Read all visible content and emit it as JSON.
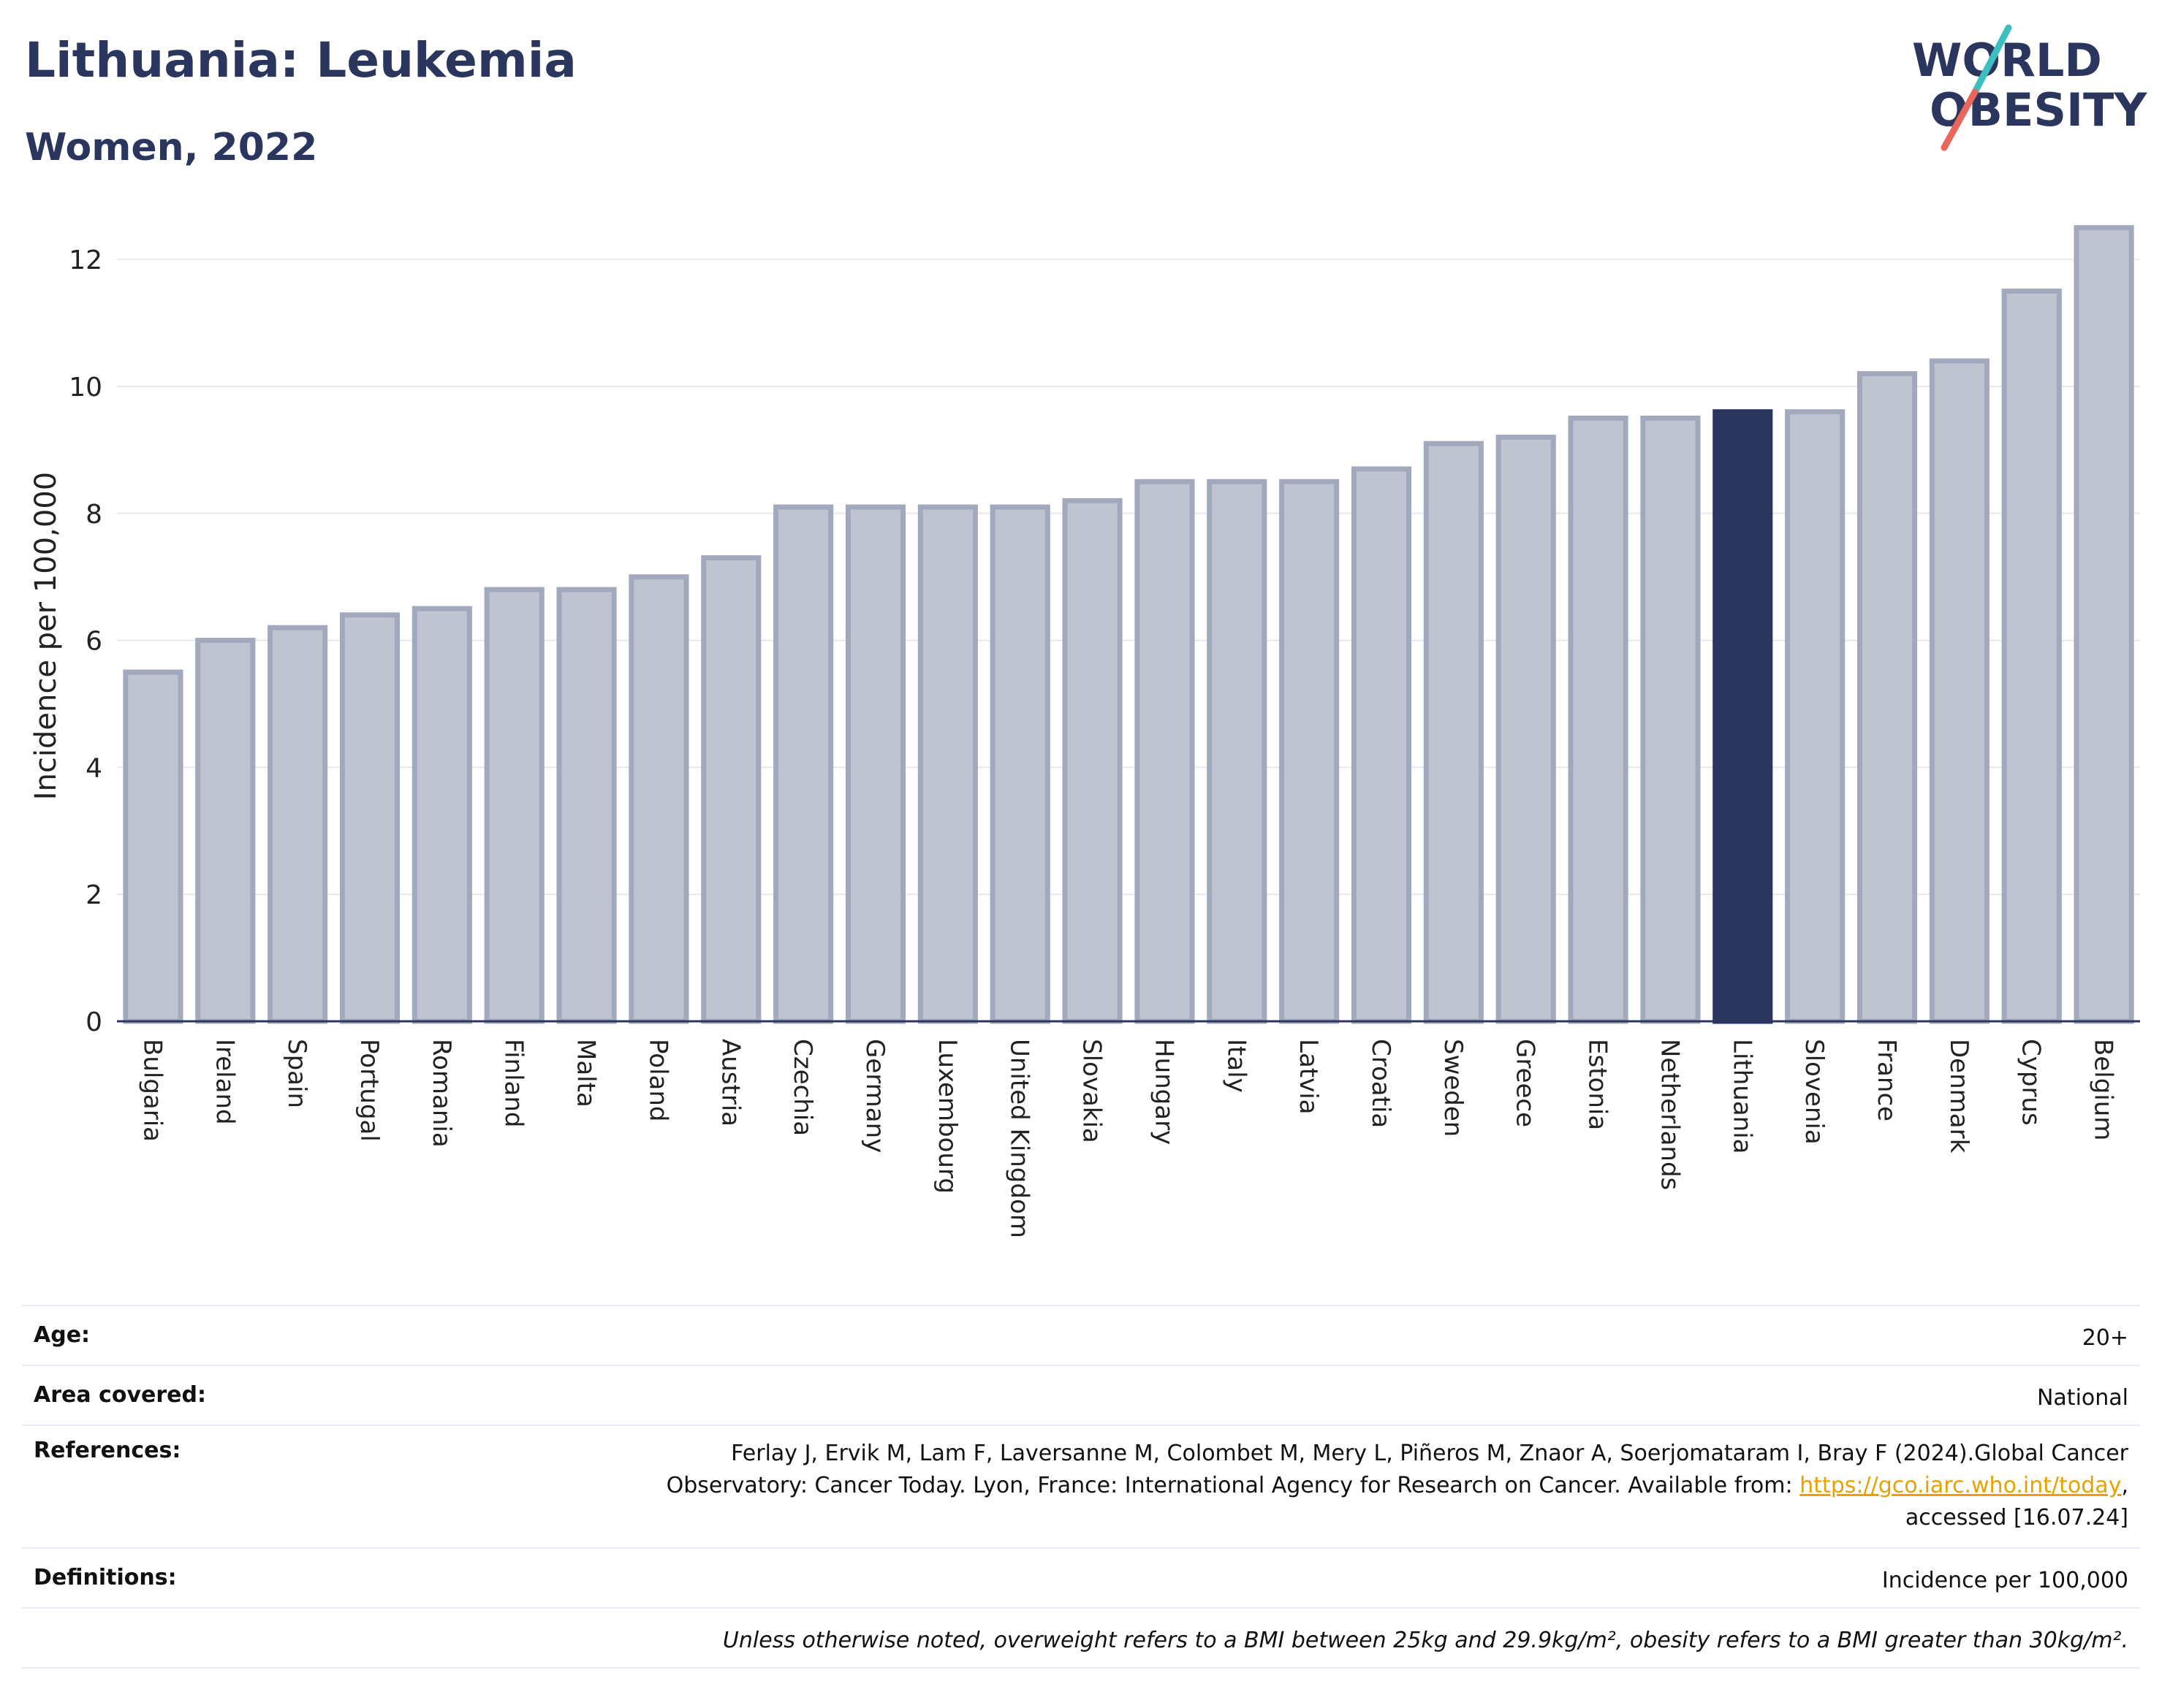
{
  "header": {
    "title": "Lithuania: Leukemia",
    "subtitle": "Women, 2022"
  },
  "logo": {
    "line1": "WORLD",
    "line2": "OBESITY"
  },
  "colors": {
    "bar": "#c0c4d1",
    "bar_border": "#a3a9bd",
    "highlight": "#2b365f",
    "grid": "#e6e8ee",
    "axis": "#2b365f",
    "logo_text": "#2b365f",
    "logo_teal": "#3bbfbf",
    "logo_coral": "#e8675a"
  },
  "chart_data": {
    "type": "bar",
    "ylabel": "Incidence per 100,000",
    "ylim": [
      0,
      12.6
    ],
    "yticks": [
      0,
      2,
      4,
      6,
      8,
      10,
      12
    ],
    "grid": true,
    "highlight": "Lithuania",
    "categories": [
      "Bulgaria",
      "Ireland",
      "Spain",
      "Portugal",
      "Romania",
      "Finland",
      "Malta",
      "Poland",
      "Austria",
      "Czechia",
      "Germany",
      "Luxembourg",
      "United Kingdom",
      "Slovakia",
      "Hungary",
      "Italy",
      "Latvia",
      "Croatia",
      "Sweden",
      "Greece",
      "Estonia",
      "Netherlands",
      "Lithuania",
      "Slovenia",
      "France",
      "Denmark",
      "Cyprus",
      "Belgium"
    ],
    "values": [
      5.5,
      6.0,
      6.2,
      6.4,
      6.5,
      6.8,
      6.8,
      7.0,
      7.3,
      8.1,
      8.1,
      8.1,
      8.1,
      8.2,
      8.5,
      8.5,
      8.5,
      8.7,
      9.1,
      9.2,
      9.5,
      9.5,
      9.6,
      9.6,
      10.2,
      10.4,
      11.5,
      12.5
    ]
  },
  "info": {
    "age_label": "Age:",
    "age_value": "20+",
    "area_label": "Area covered:",
    "area_value": "National",
    "references_label": "References:",
    "references_line1": "Ferlay J, Ervik M, Lam F, Laversanne M, Colombet M, Mery L, Piñeros M, Znaor A, Soerjomataram I, Bray F (2024).Global Cancer",
    "references_line2": "Observatory: Cancer Today. Lyon, France: International Agency for Research on Cancer. Available from: ",
    "references_link": "https://gco.iarc.who.int/today",
    "references_line2_end": ",",
    "references_line3": "accessed [16.07.24]",
    "definitions_label": "Definitions:",
    "definitions_value": "Incidence per 100,000",
    "note": "Unless otherwise noted, overweight refers to a BMI between 25kg and 29.9kg/m², obesity refers to a BMI greater than 30kg/m²."
  }
}
